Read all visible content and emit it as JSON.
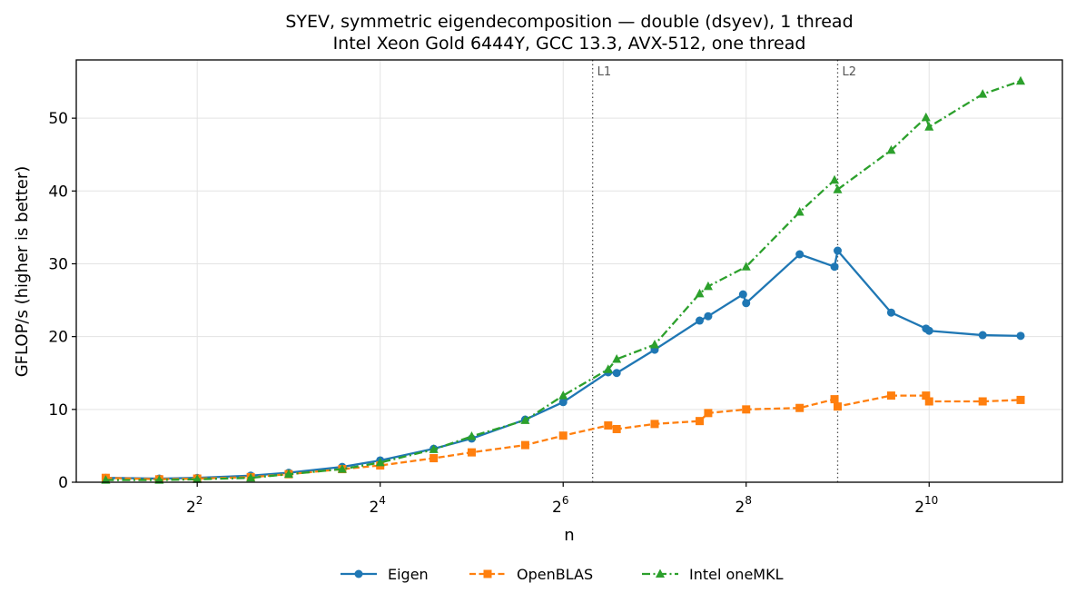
{
  "chart_data": {
    "type": "line",
    "title": "SYEV, symmetric eigendecomposition — double (dsyev), 1 thread",
    "subtitle": "Intel Xeon Gold 6444Y, GCC 13.3, AVX-512, one thread",
    "xlabel": "n",
    "ylabel": "GFLOP/s (higher is better)",
    "xscale": "log2",
    "xlim": [
      1.6,
      2810
    ],
    "ylim": [
      0,
      58
    ],
    "grid": true,
    "legend_position": "bottom-center",
    "x_ticks": [
      {
        "value": 4,
        "base": "2",
        "exp": "2"
      },
      {
        "value": 16,
        "base": "2",
        "exp": "4"
      },
      {
        "value": 64,
        "base": "2",
        "exp": "6"
      },
      {
        "value": 256,
        "base": "2",
        "exp": "8"
      },
      {
        "value": 1024,
        "base": "2",
        "exp": "10"
      }
    ],
    "y_ticks": [
      0,
      10,
      20,
      30,
      40,
      50
    ],
    "vlines": [
      {
        "x": 80,
        "label": "L1"
      },
      {
        "x": 512,
        "label": "L2"
      }
    ],
    "series": [
      {
        "name": "Eigen",
        "color": "#1f77b4",
        "marker": "circle",
        "dash": "solid",
        "x": [
          2,
          3,
          4,
          6,
          8,
          12,
          16,
          24,
          32,
          48,
          64,
          90,
          96,
          128,
          180,
          192,
          250,
          256,
          384,
          500,
          512,
          768,
          1000,
          1024,
          1536,
          2048
        ],
        "y": [
          0.6,
          0.5,
          0.6,
          0.9,
          1.3,
          2.1,
          3.0,
          4.6,
          6.0,
          8.6,
          11.0,
          15.1,
          15.0,
          18.2,
          22.2,
          22.8,
          25.8,
          24.6,
          31.3,
          29.6,
          31.8,
          23.3,
          21.1,
          20.8,
          20.2,
          20.1
        ]
      },
      {
        "name": "OpenBLAS",
        "color": "#ff7f0e",
        "marker": "square",
        "dash": "dashed",
        "x": [
          2,
          3,
          4,
          6,
          8,
          12,
          16,
          24,
          32,
          48,
          64,
          90,
          96,
          128,
          180,
          192,
          256,
          384,
          500,
          512,
          768,
          1000,
          1024,
          1536,
          2048
        ],
        "y": [
          0.6,
          0.4,
          0.5,
          0.7,
          1.1,
          1.8,
          2.3,
          3.3,
          4.1,
          5.1,
          6.4,
          7.8,
          7.3,
          8.0,
          8.4,
          9.5,
          10.0,
          10.2,
          11.4,
          10.4,
          11.9,
          11.9,
          11.1,
          11.1,
          11.3
        ]
      },
      {
        "name": "Intel oneMKL",
        "color": "#2ca02c",
        "marker": "triangle",
        "dash": "dashdot",
        "x": [
          2,
          3,
          4,
          6,
          8,
          12,
          16,
          24,
          32,
          48,
          64,
          90,
          96,
          128,
          180,
          192,
          256,
          384,
          500,
          512,
          768,
          1000,
          1024,
          1536,
          2048
        ],
        "y": [
          0.3,
          0.3,
          0.4,
          0.6,
          1.1,
          1.8,
          2.7,
          4.5,
          6.3,
          8.5,
          11.9,
          15.5,
          16.9,
          18.9,
          25.9,
          26.9,
          29.6,
          37.1,
          41.5,
          40.2,
          45.6,
          50.1,
          48.8,
          53.3,
          55.1
        ]
      }
    ]
  }
}
